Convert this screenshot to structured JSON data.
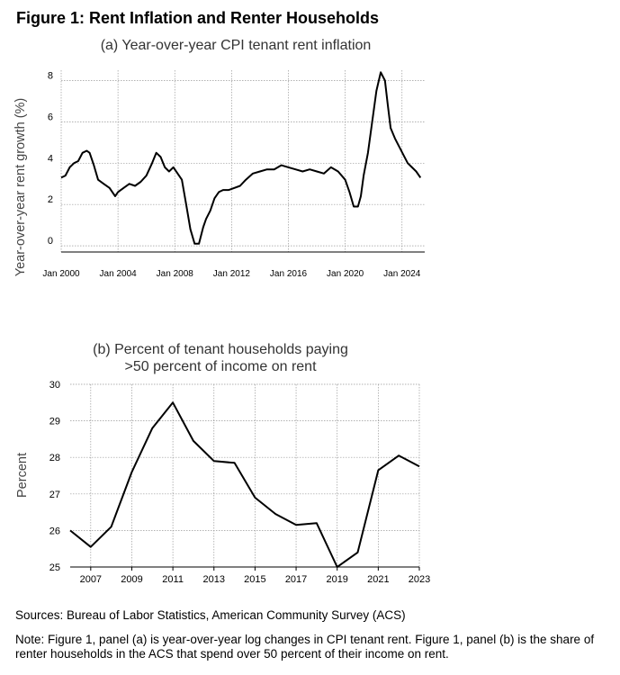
{
  "figure_title": "Figure 1: Rent Inflation and Renter Households",
  "chart_data": [
    {
      "type": "line",
      "title": "(a) Year-over-year CPI tenant rent inflation",
      "xlabel": "",
      "ylabel": "Year-over-year rent growth (%)",
      "xlim": [
        2000,
        2025.6
      ],
      "ylim": [
        -0.3,
        8.5
      ],
      "yticks": [
        0,
        2,
        4,
        6,
        8
      ],
      "xtick_labels": [
        "Jan 2000",
        "Jan 2004",
        "Jan 2008",
        "Jan 2012",
        "Jan 2016",
        "Jan 2020",
        "Jan 2024"
      ],
      "xtick_values": [
        2000,
        2004,
        2008,
        2012,
        2016,
        2020,
        2024
      ],
      "series": [
        {
          "name": "CPI tenant rent inflation",
          "x": [
            2000.0,
            2000.3,
            2000.6,
            2000.9,
            2001.2,
            2001.5,
            2001.8,
            2002.0,
            2002.3,
            2002.6,
            2003.0,
            2003.4,
            2003.8,
            2004.0,
            2004.4,
            2004.8,
            2005.2,
            2005.6,
            2006.0,
            2006.4,
            2006.7,
            2007.0,
            2007.3,
            2007.6,
            2007.9,
            2008.2,
            2008.5,
            2008.8,
            2009.1,
            2009.4,
            2009.7,
            2010.0,
            2010.2,
            2010.5,
            2010.8,
            2011.1,
            2011.4,
            2011.8,
            2012.2,
            2012.6,
            2013.0,
            2013.5,
            2014.0,
            2014.5,
            2015.0,
            2015.5,
            2016.0,
            2016.5,
            2017.0,
            2017.5,
            2018.0,
            2018.5,
            2019.0,
            2019.5,
            2020.0,
            2020.3,
            2020.6,
            2020.9,
            2021.1,
            2021.3,
            2021.6,
            2021.9,
            2022.2,
            2022.5,
            2022.8,
            2023.0,
            2023.2,
            2023.5,
            2023.8,
            2024.1,
            2024.4,
            2024.7,
            2025.0,
            2025.3
          ],
          "values": [
            3.3,
            3.4,
            3.8,
            4.0,
            4.1,
            4.5,
            4.6,
            4.5,
            3.9,
            3.2,
            3.0,
            2.8,
            2.4,
            2.6,
            2.8,
            3.0,
            2.9,
            3.1,
            3.4,
            4.0,
            4.5,
            4.3,
            3.8,
            3.6,
            3.8,
            3.5,
            3.2,
            2.0,
            0.8,
            0.1,
            0.1,
            0.9,
            1.3,
            1.7,
            2.3,
            2.6,
            2.7,
            2.7,
            2.8,
            2.9,
            3.2,
            3.5,
            3.6,
            3.7,
            3.7,
            3.9,
            3.8,
            3.7,
            3.6,
            3.7,
            3.6,
            3.5,
            3.8,
            3.6,
            3.2,
            2.6,
            1.9,
            1.9,
            2.4,
            3.4,
            4.5,
            6.0,
            7.5,
            8.4,
            8.0,
            6.8,
            5.7,
            5.2,
            4.8,
            4.4,
            4.0,
            3.8,
            3.6,
            3.3
          ]
        }
      ]
    },
    {
      "type": "line",
      "title": "(b) Percent of tenant households paying >50 percent of income on rent",
      "title_lines": [
        "(b) Percent of tenant households paying",
        ">50 percent of income on rent"
      ],
      "xlabel": "",
      "ylabel": "Percent",
      "xlim": [
        2006,
        2023
      ],
      "ylim": [
        25,
        30
      ],
      "yticks": [
        25,
        26,
        27,
        28,
        29,
        30
      ],
      "xticks": [
        2007,
        2009,
        2011,
        2013,
        2015,
        2017,
        2019,
        2021,
        2023
      ],
      "series": [
        {
          "name": "Share of renter households spending >50% of income on rent",
          "x": [
            2006,
            2007,
            2008,
            2009,
            2010,
            2011,
            2012,
            2013,
            2014,
            2015,
            2016,
            2017,
            2018,
            2019,
            2020,
            2021,
            2022,
            2023
          ],
          "values": [
            26.0,
            25.55,
            26.1,
            27.6,
            28.8,
            29.5,
            28.45,
            27.9,
            27.85,
            26.9,
            26.45,
            26.15,
            26.2,
            25.0,
            25.4,
            27.65,
            28.05,
            27.75
          ]
        }
      ]
    }
  ],
  "sources": "Sources: Bureau of Labor Statistics, American Community Survey (ACS)",
  "note": "Note: Figure 1, panel (a) is year-over-year log changes in CPI tenant rent. Figure 1, panel (b) is the share of renter households in the ACS that spend over 50 percent of their income on rent."
}
